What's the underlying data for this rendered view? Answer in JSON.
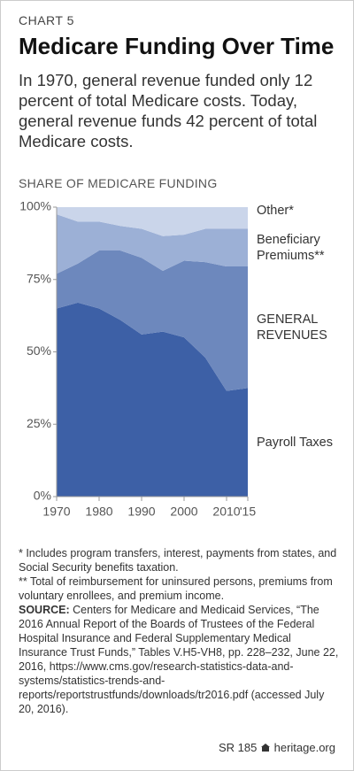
{
  "chart_data": {
    "type": "stacked_area",
    "kicker": "CHART 5",
    "title": "Medicare Funding Over Time",
    "subtitle": "In 1970, general revenue funded only 12 percent of total Medicare costs. Today, general revenue funds 42 percent of total Medicare costs.",
    "y_label": "SHARE OF MEDICARE FUNDING",
    "x": [
      1970,
      1975,
      1980,
      1985,
      1990,
      1995,
      2000,
      2005,
      2010,
      2015
    ],
    "series": [
      {
        "name": "Payroll Taxes",
        "color": "#3d60a6",
        "values": [
          65,
          67,
          65,
          61,
          56,
          57,
          55,
          48,
          36.5,
          37.5
        ]
      },
      {
        "name": "GENERAL REVENUES",
        "color": "#6d88bd",
        "values": [
          12,
          13.5,
          20,
          24,
          26.5,
          21,
          26.5,
          33,
          43,
          42
        ]
      },
      {
        "name": "Beneficiary Premiums**",
        "color": "#9cb0d6",
        "values": [
          20.5,
          14.5,
          10,
          8.5,
          10,
          12,
          9,
          11.5,
          13,
          13
        ]
      },
      {
        "name": "Other*",
        "color": "#cad5ea",
        "values": [
          2.5,
          5,
          5,
          6.5,
          7.5,
          10,
          9.5,
          7.5,
          7.5,
          7.5
        ]
      }
    ],
    "xlim": [
      1970,
      2015
    ],
    "xticks": [
      1970,
      1980,
      1990,
      2000,
      2010,
      {
        "value": 2015,
        "label": "'15"
      }
    ],
    "ylim": [
      0,
      100
    ],
    "yticks": [
      {
        "value": 0,
        "label": "0%"
      },
      {
        "value": 25,
        "label": "25%"
      },
      {
        "value": 50,
        "label": "50%"
      },
      {
        "value": 75,
        "label": "75%"
      },
      {
        "value": 100,
        "label": "100%"
      }
    ],
    "notes": [
      "* Includes program transfers, interest, payments from states, and Social Security benefits taxation.",
      "** Total of reimbursement for uninsured persons, premiums from voluntary enrollees, and premium income."
    ],
    "source_label": "SOURCE:",
    "source": "Centers for Medicare and Medicaid Services, “The 2016 Annual Report of the Boards of Trustees of the Federal Hospital Insurance and Federal Supplementary Medical Insurance Trust Funds,” Tables V.H5-VH8, pp. 228–232, June 22, 2016, https://www.cms.gov/research-statistics-data-and-systems/statistics-trends-and-reports/reportstrustfunds/downloads/tr2016.pdf (accessed July 20, 2016).",
    "report": "SR 185",
    "site": "heritage.org"
  }
}
